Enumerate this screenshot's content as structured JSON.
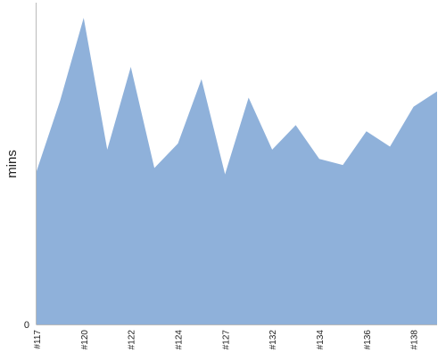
{
  "chart_data": {
    "type": "area",
    "title": "",
    "xlabel": "",
    "ylabel": "mins",
    "x_tick_labels": [
      "#117",
      "#120",
      "#122",
      "#124",
      "#127",
      "#132",
      "#134",
      "#136",
      "#138"
    ],
    "y_tick_labels": [
      "0"
    ],
    "y_axis_min_label_value": 0,
    "x_index_range": [
      0,
      17
    ],
    "x_tick_positions": [
      0,
      2,
      4,
      6,
      8,
      10,
      12,
      14,
      16
    ],
    "values_relative_to_peak": [
      0.5,
      0.73,
      1.0,
      0.57,
      0.84,
      0.51,
      0.59,
      0.8,
      0.49,
      0.74,
      0.57,
      0.65,
      0.54,
      0.52,
      0.63,
      0.58,
      0.71,
      0.76
    ],
    "grid": false,
    "legend": "none",
    "colors": {
      "area_fill": "#8fb1da",
      "axis": "#bbbbbb",
      "text": "#222222"
    }
  }
}
